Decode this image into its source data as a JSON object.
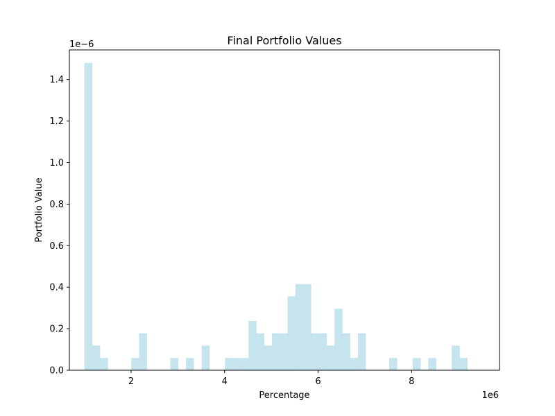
{
  "chart_data": {
    "type": "bar",
    "title": "Final Portfolio Values",
    "xlabel": "Percentage",
    "ylabel": "Portfolio Value",
    "x_offset_label": "1e6",
    "y_offset_label": "1e−6",
    "x_scale": 1000000,
    "y_scale": 1e-06,
    "xlim": [
      0.68,
      9.88
    ],
    "ylim": [
      0,
      1.5425
    ],
    "x_ticks": [
      2,
      4,
      6,
      8
    ],
    "y_ticks": [
      0.0,
      0.2,
      0.4,
      0.6,
      0.8,
      1.0,
      1.2,
      1.4
    ],
    "x_tick_labels": [
      "2",
      "4",
      "6",
      "8"
    ],
    "y_tick_labels": [
      "0.0",
      "0.2",
      "0.4",
      "0.6",
      "0.8",
      "1.0",
      "1.2",
      "1.4"
    ],
    "bin_start": 1.0,
    "bin_width": 0.1672,
    "bin_values": [
      1.48,
      0.119,
      0.059,
      0,
      0,
      0,
      0.059,
      0.178,
      0,
      0,
      0,
      0.059,
      0,
      0.059,
      0,
      0.119,
      0,
      0,
      0.059,
      0.059,
      0.059,
      0.237,
      0.178,
      0.119,
      0.178,
      0.178,
      0.356,
      0.415,
      0.415,
      0.178,
      0.178,
      0.119,
      0.296,
      0.178,
      0.059,
      0.178,
      0,
      0,
      0,
      0.059,
      0,
      0,
      0.059,
      0,
      0.059,
      0,
      0,
      0.119,
      0.059
    ],
    "bar_color": "#add8e6",
    "bar_opacity": 0.7,
    "grid": false,
    "legend": "none"
  }
}
